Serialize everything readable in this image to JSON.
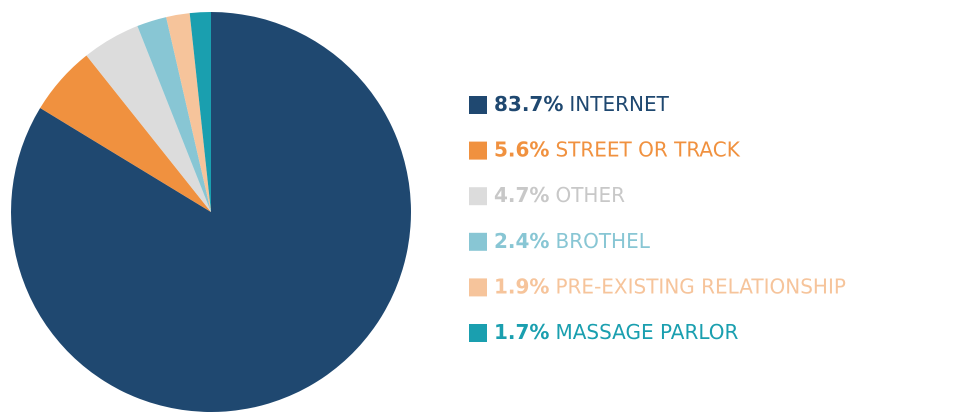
{
  "chart_data": {
    "type": "pie",
    "categories": [
      "INTERNET",
      "STREET OR TRACK",
      "OTHER",
      "BROTHEL",
      "PRE-EXISTING RELATIONSHIP",
      "MASSAGE PARLOR"
    ],
    "values": [
      83.7,
      5.6,
      4.7,
      2.4,
      1.9,
      1.7
    ],
    "value_labels": [
      "83.7%",
      "5.6%",
      "4.7%",
      "2.4%",
      "1.9%",
      "1.7%"
    ],
    "colors": [
      "#1f4870",
      "#f0913f",
      "#dcdcdc",
      "#88c6d4",
      "#f6c49b",
      "#1a9faf"
    ]
  }
}
